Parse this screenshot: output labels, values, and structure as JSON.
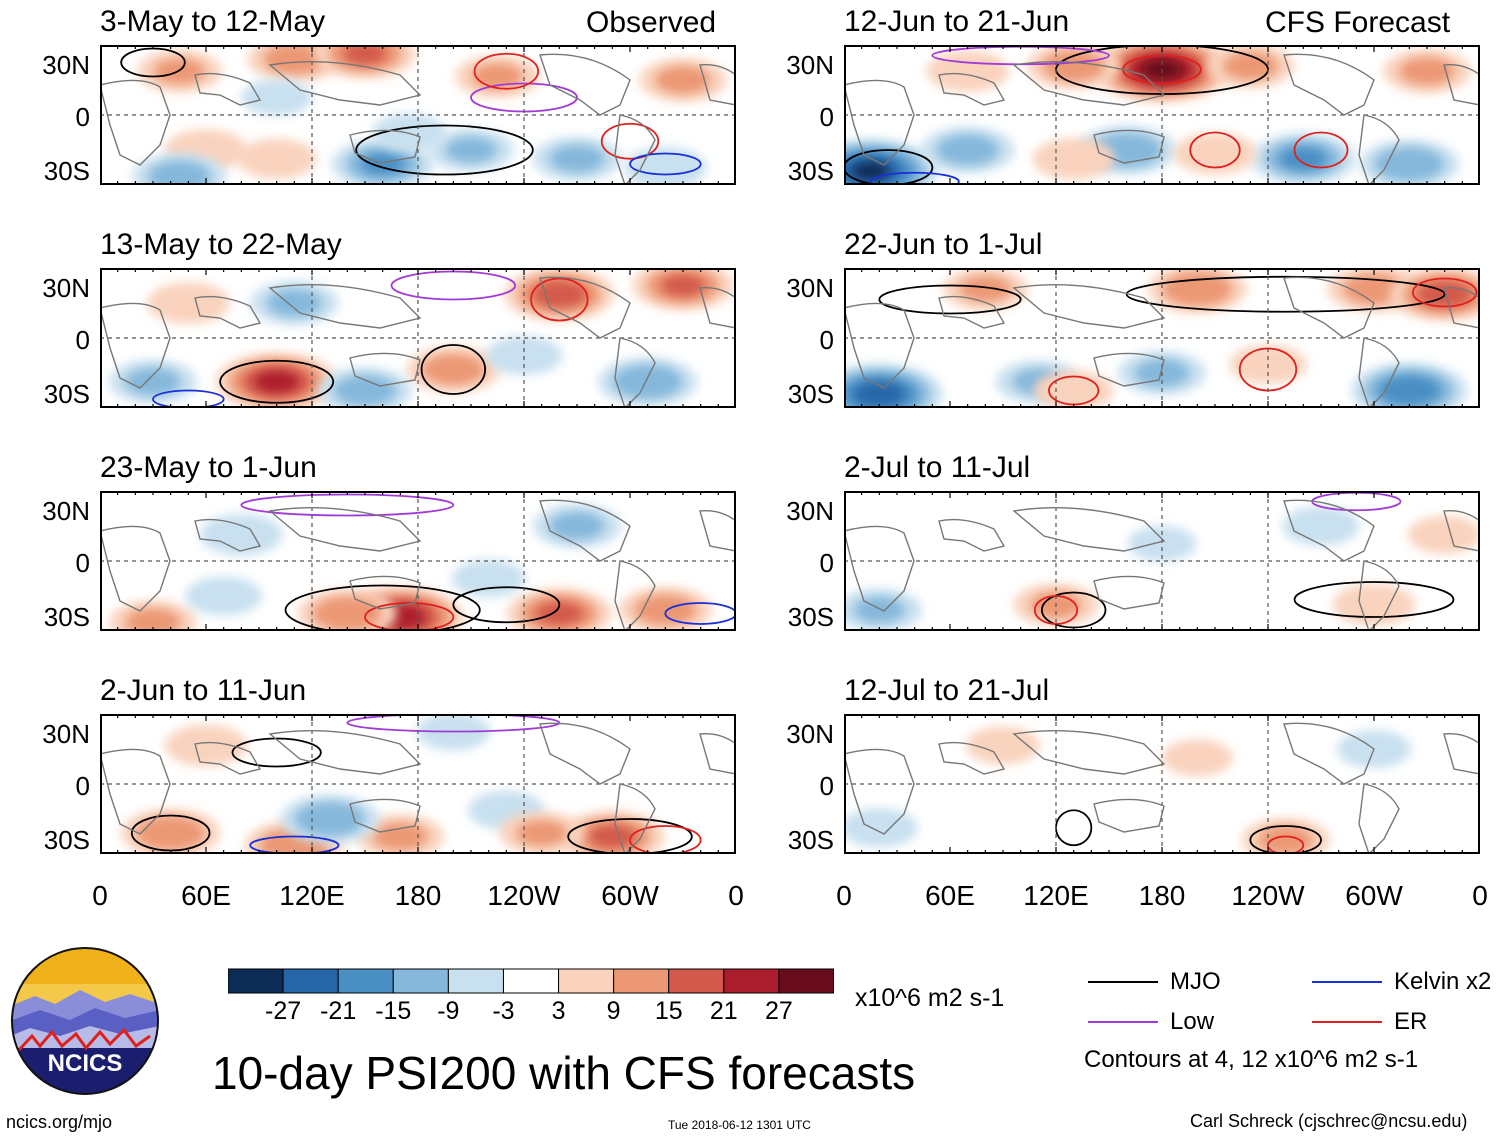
{
  "headers": {
    "left": "Observed",
    "right": "CFS Forecast"
  },
  "chart_data": {
    "type": "heatmap",
    "title": "10-day PSI200 with CFS forecasts",
    "variable": "PSI200",
    "units": "x10^6 m2 s-1",
    "contour_note": "Contours at 4, 12 x10^6 m2 s-1",
    "lat_ticks": [
      "30N",
      "0",
      "30S"
    ],
    "lon_ticks": [
      "0",
      "60E",
      "120E",
      "180",
      "120W",
      "60W",
      "0"
    ],
    "colorbar": {
      "labels": [
        "-27",
        "-21",
        "-15",
        "-9",
        "-3",
        "3",
        "9",
        "15",
        "21",
        "27"
      ],
      "colors": [
        "#0c2c55",
        "#2566a8",
        "#4a8fc4",
        "#85b8db",
        "#c8e0ef",
        "#ffffff",
        "#f9d3bd",
        "#ec9874",
        "#d35a4c",
        "#ab1d2c",
        "#680c1c"
      ]
    },
    "contour_series": [
      {
        "name": "MJO",
        "color": "#000000"
      },
      {
        "name": "Kelvin x2",
        "color": "#1a2fd8"
      },
      {
        "name": "Low",
        "color": "#a13bd8"
      },
      {
        "name": "ER",
        "color": "#e0201c"
      }
    ],
    "panels": [
      {
        "title": "3-May to 12-May",
        "source": "Observed",
        "blobs": [
          {
            "lon": 45,
            "lat": 25,
            "value": 9
          },
          {
            "lon": 110,
            "lat": 32,
            "value": 12
          },
          {
            "lon": 150,
            "lat": 35,
            "value": 15
          },
          {
            "lon": 225,
            "lat": 22,
            "value": 9
          },
          {
            "lon": 330,
            "lat": 20,
            "value": 10
          },
          {
            "lon": 60,
            "lat": -20,
            "value": 8
          },
          {
            "lon": 100,
            "lat": -25,
            "value": 7
          },
          {
            "lon": 45,
            "lat": -35,
            "value": -12
          },
          {
            "lon": 160,
            "lat": -28,
            "value": -15
          },
          {
            "lon": 210,
            "lat": -20,
            "value": -9
          },
          {
            "lon": 270,
            "lat": -25,
            "value": -10
          },
          {
            "lon": 320,
            "lat": -30,
            "value": -8
          },
          {
            "lon": 100,
            "lat": 10,
            "value": -4
          },
          {
            "lon": 175,
            "lat": -10,
            "value": -5
          }
        ],
        "contours": [
          {
            "series": "MJO",
            "lon": 30,
            "lat": 30,
            "rx": 18,
            "ry": 8
          },
          {
            "series": "MJO",
            "lon": 195,
            "lat": -20,
            "rx": 50,
            "ry": 14
          },
          {
            "series": "Low",
            "lon": 240,
            "lat": 10,
            "rx": 30,
            "ry": 8
          },
          {
            "series": "ER",
            "lon": 230,
            "lat": 25,
            "rx": 18,
            "ry": 10
          },
          {
            "series": "ER",
            "lon": 300,
            "lat": -15,
            "rx": 16,
            "ry": 10
          },
          {
            "series": "Kelvin x2",
            "lon": 320,
            "lat": -28,
            "rx": 20,
            "ry": 6
          }
        ]
      },
      {
        "title": "13-May to 22-May",
        "source": "Observed",
        "blobs": [
          {
            "lon": 100,
            "lat": -25,
            "value": 22
          },
          {
            "lon": 200,
            "lat": -18,
            "value": 12
          },
          {
            "lon": 260,
            "lat": 25,
            "value": 18
          },
          {
            "lon": 330,
            "lat": 30,
            "value": 15
          },
          {
            "lon": 50,
            "lat": 20,
            "value": 8
          },
          {
            "lon": 150,
            "lat": -30,
            "value": -12
          },
          {
            "lon": 310,
            "lat": -25,
            "value": -14
          },
          {
            "lon": 30,
            "lat": -25,
            "value": -10
          },
          {
            "lon": 110,
            "lat": 20,
            "value": -10
          },
          {
            "lon": 240,
            "lat": -10,
            "value": -6
          }
        ],
        "contours": [
          {
            "series": "MJO",
            "lon": 100,
            "lat": -25,
            "rx": 32,
            "ry": 12
          },
          {
            "series": "MJO",
            "lon": 200,
            "lat": -18,
            "rx": 18,
            "ry": 14
          },
          {
            "series": "ER",
            "lon": 260,
            "lat": 22,
            "rx": 16,
            "ry": 12
          },
          {
            "series": "Low",
            "lon": 200,
            "lat": 30,
            "rx": 35,
            "ry": 8
          },
          {
            "series": "Kelvin x2",
            "lon": 50,
            "lat": -35,
            "rx": 20,
            "ry": 5
          }
        ]
      },
      {
        "title": "23-May to 1-Jun",
        "source": "Observed",
        "blobs": [
          {
            "lon": 170,
            "lat": -32,
            "value": 24
          },
          {
            "lon": 140,
            "lat": -30,
            "value": 14
          },
          {
            "lon": 260,
            "lat": -30,
            "value": 16
          },
          {
            "lon": 320,
            "lat": -28,
            "value": 12
          },
          {
            "lon": 30,
            "lat": -35,
            "value": 10
          },
          {
            "lon": 80,
            "lat": 15,
            "value": -8
          },
          {
            "lon": 270,
            "lat": 20,
            "value": -10
          },
          {
            "lon": 70,
            "lat": -20,
            "value": -6
          },
          {
            "lon": 220,
            "lat": -10,
            "value": -5
          }
        ],
        "contours": [
          {
            "series": "MJO",
            "lon": 160,
            "lat": -28,
            "rx": 55,
            "ry": 14
          },
          {
            "series": "MJO",
            "lon": 230,
            "lat": -25,
            "rx": 30,
            "ry": 10
          },
          {
            "series": "ER",
            "lon": 175,
            "lat": -32,
            "rx": 25,
            "ry": 8
          },
          {
            "series": "Low",
            "lon": 140,
            "lat": 32,
            "rx": 60,
            "ry": 6
          },
          {
            "series": "Kelvin x2",
            "lon": 340,
            "lat": -30,
            "rx": 20,
            "ry": 6
          }
        ]
      },
      {
        "title": "2-Jun to 11-Jun",
        "source": "Observed",
        "blobs": [
          {
            "lon": 40,
            "lat": -28,
            "value": 14
          },
          {
            "lon": 110,
            "lat": -35,
            "value": 14
          },
          {
            "lon": 170,
            "lat": -30,
            "value": 10
          },
          {
            "lon": 290,
            "lat": -30,
            "value": 16
          },
          {
            "lon": 60,
            "lat": 22,
            "value": 8
          },
          {
            "lon": 130,
            "lat": -20,
            "value": -14
          },
          {
            "lon": 230,
            "lat": -15,
            "value": -6
          },
          {
            "lon": 200,
            "lat": 30,
            "value": -5
          },
          {
            "lon": 250,
            "lat": -28,
            "value": 9
          }
        ],
        "contours": [
          {
            "series": "MJO",
            "lon": 40,
            "lat": -28,
            "rx": 22,
            "ry": 10
          },
          {
            "series": "MJO",
            "lon": 300,
            "lat": -30,
            "rx": 35,
            "ry": 10
          },
          {
            "series": "MJO",
            "lon": 100,
            "lat": 18,
            "rx": 25,
            "ry": 8
          },
          {
            "series": "ER",
            "lon": 320,
            "lat": -32,
            "rx": 20,
            "ry": 8
          },
          {
            "series": "Low",
            "lon": 200,
            "lat": 35,
            "rx": 60,
            "ry": 5
          },
          {
            "series": "Kelvin x2",
            "lon": 110,
            "lat": -35,
            "rx": 25,
            "ry": 5
          }
        ]
      },
      {
        "title": "12-Jun to 21-Jun",
        "source": "CFS Forecast",
        "blobs": [
          {
            "lon": 180,
            "lat": 26,
            "value": 28
          },
          {
            "lon": 130,
            "lat": 28,
            "value": 12
          },
          {
            "lon": 230,
            "lat": 28,
            "value": 10
          },
          {
            "lon": 70,
            "lat": 25,
            "value": 8
          },
          {
            "lon": 330,
            "lat": 25,
            "value": 10
          },
          {
            "lon": 15,
            "lat": -32,
            "value": -27
          },
          {
            "lon": 70,
            "lat": -20,
            "value": -12
          },
          {
            "lon": 160,
            "lat": -20,
            "value": -14
          },
          {
            "lon": 260,
            "lat": -25,
            "value": -16
          },
          {
            "lon": 320,
            "lat": -28,
            "value": -14
          },
          {
            "lon": 130,
            "lat": -25,
            "value": 8
          },
          {
            "lon": 210,
            "lat": -22,
            "value": 8
          }
        ],
        "contours": [
          {
            "series": "MJO",
            "lon": 180,
            "lat": 26,
            "rx": 60,
            "ry": 14
          },
          {
            "series": "MJO",
            "lon": 25,
            "lat": -30,
            "rx": 25,
            "ry": 10
          },
          {
            "series": "ER",
            "lon": 180,
            "lat": 26,
            "rx": 22,
            "ry": 8
          },
          {
            "series": "ER",
            "lon": 210,
            "lat": -20,
            "rx": 14,
            "ry": 10
          },
          {
            "series": "ER",
            "lon": 270,
            "lat": -20,
            "rx": 15,
            "ry": 10
          },
          {
            "series": "Kelvin x2",
            "lon": 40,
            "lat": -38,
            "rx": 25,
            "ry": 5
          },
          {
            "series": "Low",
            "lon": 100,
            "lat": 34,
            "rx": 50,
            "ry": 5
          }
        ]
      },
      {
        "title": "22-Jun to 1-Jul",
        "source": "CFS Forecast",
        "blobs": [
          {
            "lon": 200,
            "lat": 28,
            "value": 14
          },
          {
            "lon": 300,
            "lat": 28,
            "value": 12
          },
          {
            "lon": 340,
            "lat": 25,
            "value": 18
          },
          {
            "lon": 80,
            "lat": 28,
            "value": 9
          },
          {
            "lon": 20,
            "lat": -32,
            "value": -24
          },
          {
            "lon": 110,
            "lat": -25,
            "value": -9
          },
          {
            "lon": 320,
            "lat": -30,
            "value": -20
          },
          {
            "lon": 180,
            "lat": -20,
            "value": -10
          },
          {
            "lon": 130,
            "lat": -30,
            "value": 7
          },
          {
            "lon": 240,
            "lat": -15,
            "value": 6
          }
        ],
        "contours": [
          {
            "series": "MJO",
            "lon": 250,
            "lat": 25,
            "rx": 90,
            "ry": 10
          },
          {
            "series": "MJO",
            "lon": 60,
            "lat": 22,
            "rx": 40,
            "ry": 8
          },
          {
            "series": "ER",
            "lon": 130,
            "lat": -30,
            "rx": 14,
            "ry": 8
          },
          {
            "series": "ER",
            "lon": 240,
            "lat": -18,
            "rx": 16,
            "ry": 12
          },
          {
            "series": "ER",
            "lon": 340,
            "lat": 26,
            "rx": 18,
            "ry": 8
          }
        ]
      },
      {
        "title": "2-Jul to 11-Jul",
        "source": "CFS Forecast",
        "blobs": [
          {
            "lon": 120,
            "lat": -25,
            "value": 9
          },
          {
            "lon": 300,
            "lat": -25,
            "value": 8
          },
          {
            "lon": 20,
            "lat": -28,
            "value": -9
          },
          {
            "lon": 270,
            "lat": 20,
            "value": -6
          },
          {
            "lon": 180,
            "lat": 10,
            "value": -3
          },
          {
            "lon": 340,
            "lat": 15,
            "value": 5
          }
        ],
        "contours": [
          {
            "series": "MJO",
            "lon": 130,
            "lat": -28,
            "rx": 18,
            "ry": 10
          },
          {
            "series": "MJO",
            "lon": 300,
            "lat": -22,
            "rx": 45,
            "ry": 10
          },
          {
            "series": "ER",
            "lon": 120,
            "lat": -28,
            "rx": 12,
            "ry": 8
          },
          {
            "series": "Low",
            "lon": 290,
            "lat": 34,
            "rx": 25,
            "ry": 5
          }
        ]
      },
      {
        "title": "12-Jul to 21-Jul",
        "source": "CFS Forecast",
        "blobs": [
          {
            "lon": 250,
            "lat": -32,
            "value": 10
          },
          {
            "lon": 90,
            "lat": 22,
            "value": 5
          },
          {
            "lon": 20,
            "lat": -25,
            "value": -6
          },
          {
            "lon": 200,
            "lat": 15,
            "value": 4
          },
          {
            "lon": 300,
            "lat": 20,
            "value": -5
          }
        ],
        "contours": [
          {
            "series": "MJO",
            "lon": 250,
            "lat": -32,
            "rx": 20,
            "ry": 8
          },
          {
            "series": "MJO",
            "lon": 130,
            "lat": -25,
            "rx": 10,
            "ry": 10
          },
          {
            "series": "ER",
            "lon": 250,
            "lat": -35,
            "rx": 10,
            "ry": 5
          }
        ]
      }
    ]
  },
  "logo": {
    "text": "NCICS"
  },
  "footer": {
    "url": "ncics.org/mjo",
    "timestamp": "Tue 2018-06-12 1301 UTC",
    "author": "Carl Schreck (cjschrec@ncsu.edu)"
  }
}
